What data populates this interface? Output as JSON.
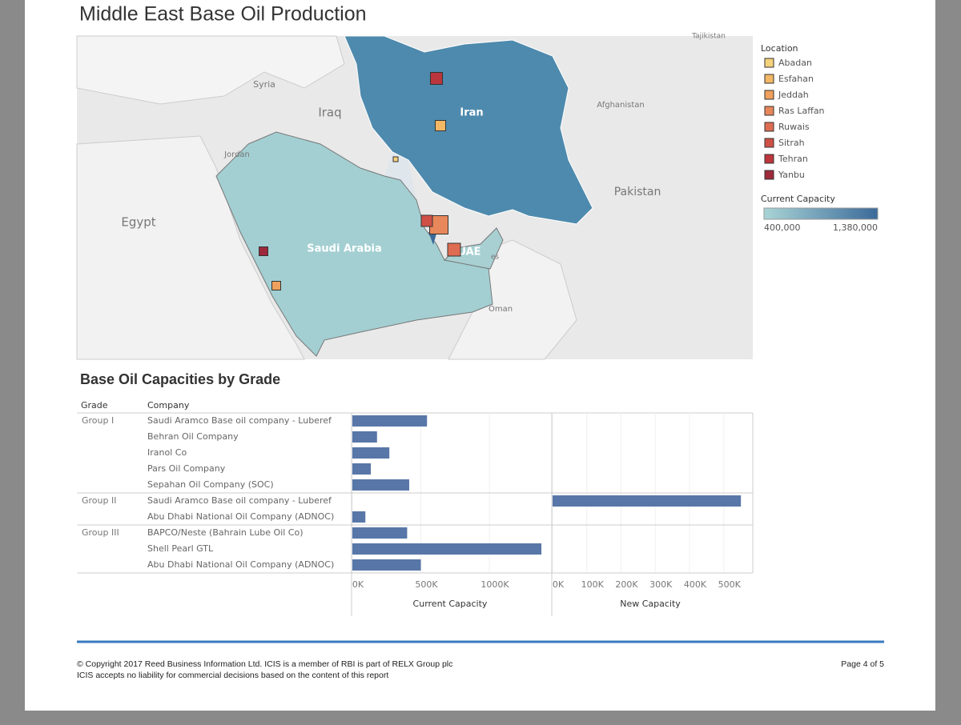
{
  "title": "Middle East Base Oil Production",
  "map": {
    "country_labels": [
      "Tajikistan",
      "Syria",
      "Iraq",
      "Jordan",
      "Egypt",
      "Afghanistan",
      "Pakistan",
      "Oman",
      "es"
    ],
    "highlight_labels": [
      "Iran",
      "Saudi Arabia",
      "UAE"
    ],
    "location_legend": {
      "title": "Location",
      "items": [
        {
          "name": "Abadan",
          "color": "#f5d27c"
        },
        {
          "name": "Esfahan",
          "color": "#f2b866"
        },
        {
          "name": "Jeddah",
          "color": "#efa05c"
        },
        {
          "name": "Ras Laffan",
          "color": "#e8875a"
        },
        {
          "name": "Ruwais",
          "color": "#de6c52"
        },
        {
          "name": "Sitrah",
          "color": "#cf5046"
        },
        {
          "name": "Tehran",
          "color": "#bc363e"
        },
        {
          "name": "Yanbu",
          "color": "#9d2a3c"
        }
      ]
    },
    "capacity_legend": {
      "title": "Current Capacity",
      "colors": [
        "#a9d4d6",
        "#3b6a99"
      ],
      "range": [
        {
          "value": 400000,
          "label": "400,000"
        },
        {
          "value": 1380000,
          "label": "1,380,000"
        }
      ]
    }
  },
  "chart_data": {
    "type": "bar",
    "title": "Base Oil Capacities by Grade",
    "grade_header": "Grade",
    "company_header": "Company",
    "color": "#5876a8",
    "groups": [
      {
        "grade": "Group I",
        "companies": [
          "Saudi Aramco Base oil company - Luberef",
          "Behran Oil Company",
          "Iranol Co",
          "Pars Oil Company",
          "Sepahan Oil Company (SOC)"
        ],
        "current": [
          545000,
          180000,
          270000,
          135000,
          415000
        ],
        "new": [
          null,
          null,
          null,
          null,
          null
        ]
      },
      {
        "grade": "Group II",
        "companies": [
          "Saudi Aramco Base oil company - Luberef",
          "Abu Dhabi National Oil Company (ADNOC)"
        ],
        "current": [
          null,
          95000
        ],
        "new": [
          550000,
          null
        ]
      },
      {
        "grade": "Group III",
        "companies": [
          "BAPCO/Neste (Bahrain Lube Oil Co)",
          "Shell Pearl GTL",
          "Abu Dhabi National Oil Company (ADNOC)"
        ],
        "current": [
          400000,
          1380000,
          500000
        ],
        "new": [
          null,
          null,
          null
        ]
      }
    ],
    "panels": [
      {
        "key": "current",
        "name": "Current Capacity",
        "xlim": [
          0,
          1450000
        ],
        "xticks": [
          {
            "value": 0,
            "label": "0K"
          },
          {
            "value": 500000,
            "label": "500K"
          },
          {
            "value": 1000000,
            "label": "1000K"
          }
        ]
      },
      {
        "key": "new",
        "name": "New Capacity",
        "xlim": [
          0,
          580000
        ],
        "xticks": [
          {
            "value": 0,
            "label": "0K"
          },
          {
            "value": 100000,
            "label": "100K"
          },
          {
            "value": 200000,
            "label": "200K"
          },
          {
            "value": 300000,
            "label": "300K"
          },
          {
            "value": 400000,
            "label": "400K"
          },
          {
            "value": 500000,
            "label": "500K"
          }
        ]
      }
    ]
  },
  "footer": {
    "lines": [
      "© Copyright 2017 Reed Business Information Ltd. ICIS is a member of RBI is part of RELX Group plc",
      "ICIS accepts no liability for commercial decisions based on the content of this report"
    ],
    "page": "Page 4 of 5"
  }
}
